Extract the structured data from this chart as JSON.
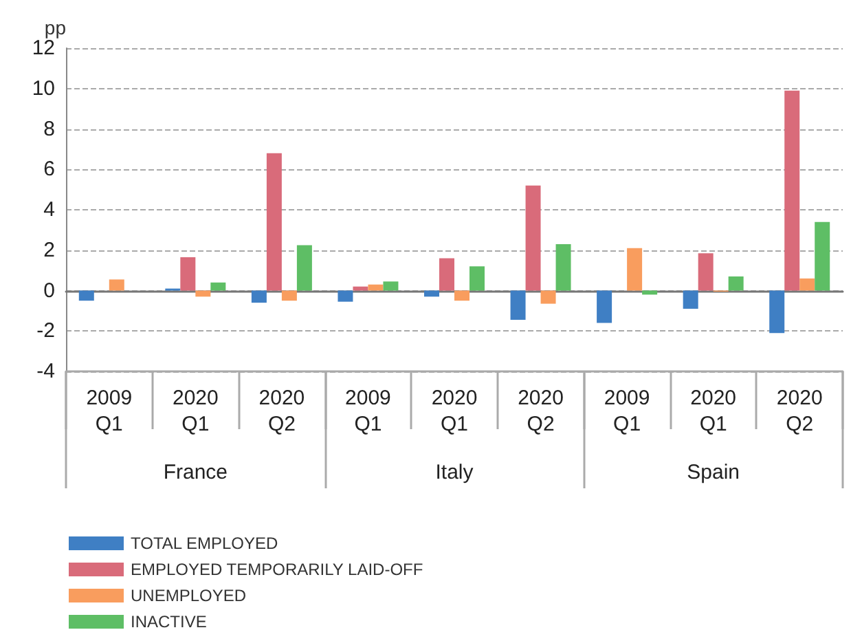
{
  "chart_data": {
    "type": "bar",
    "ylabel": "pp",
    "categories": [
      "2009 Q1",
      "2020 Q1",
      "2020 Q2",
      "2009 Q1",
      "2020 Q1",
      "2020 Q2",
      "2009 Q1",
      "2020 Q1",
      "2020 Q2"
    ],
    "annotations": [
      "France",
      "Italy",
      "Spain"
    ],
    "series": [
      {
        "name": "TOTAL EMPLOYED",
        "color": "#3f7fc4",
        "values": [
          -0.5,
          0.1,
          -0.6,
          -0.55,
          -0.3,
          -1.45,
          -1.6,
          -0.9,
          -2.1
        ]
      },
      {
        "name": "EMPLOYED TEMPORARILY LAID-OFF",
        "color": "#d96b7a",
        "values": [
          0,
          1.65,
          6.8,
          0.2,
          1.6,
          5.2,
          0,
          1.85,
          9.9
        ]
      },
      {
        "name": "UNEMPLOYED",
        "color": "#f99d5e",
        "values": [
          0.55,
          -0.3,
          -0.5,
          0.3,
          -0.5,
          -0.65,
          2.1,
          -0.05,
          0.6
        ]
      },
      {
        "name": "INACTIVE",
        "color": "#5ebe65",
        "values": [
          0,
          0.4,
          2.25,
          0.45,
          1.2,
          2.3,
          -0.2,
          0.7,
          3.4
        ]
      }
    ],
    "ylim": [
      -4,
      12
    ],
    "yticks": [
      -4,
      -2,
      0,
      2,
      4,
      6,
      8,
      10,
      12
    ],
    "grid": "y",
    "legend": "bottom left"
  }
}
